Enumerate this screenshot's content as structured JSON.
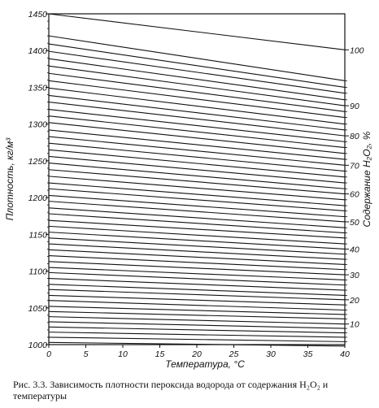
{
  "caption": "Рис. 3.3. Зависимость плотности пероксида водорода от содержания H₂O₂ и температуры",
  "chart_data": {
    "type": "line",
    "title": "",
    "xlabel": "Температура, °С",
    "ylabel": "Плотность, кг/м³",
    "y2label": "Содержание H₂O₂, %",
    "xlim": [
      0,
      40
    ],
    "ylim": [
      1000,
      1450
    ],
    "xticks": [
      "0",
      "5",
      "10",
      "15",
      "20",
      "25",
      "30",
      "35",
      "40"
    ],
    "yticks": [
      "1000",
      "1050",
      "1100",
      "1150",
      "1200",
      "1250",
      "1300",
      "1350",
      "1400",
      "1450"
    ],
    "y2ticks": [
      "10",
      "20",
      "30",
      "40",
      "50",
      "60",
      "70",
      "80",
      "90",
      "100"
    ],
    "grid": false,
    "series_description": "Isoconcentration lines: density vs temperature for H2O2 content from 0 to 100 % in 2 % steps",
    "content_percent": [
      0,
      2,
      4,
      6,
      8,
      10,
      12,
      14,
      16,
      18,
      20,
      22,
      24,
      26,
      28,
      30,
      32,
      34,
      36,
      38,
      40,
      42,
      44,
      46,
      48,
      50,
      52,
      54,
      56,
      58,
      60,
      62,
      64,
      66,
      68,
      70,
      72,
      74,
      76,
      78,
      80,
      82,
      84,
      86,
      88,
      90,
      92,
      94,
      96,
      98,
      100
    ],
    "density_at_0C": [
      1003,
      1010,
      1017,
      1024,
      1031,
      1038,
      1045,
      1052,
      1060,
      1067,
      1075,
      1082,
      1090,
      1098,
      1105,
      1113,
      1121,
      1129,
      1137,
      1145,
      1153,
      1161,
      1169,
      1178,
      1186,
      1195,
      1203,
      1212,
      1220,
      1229,
      1238,
      1247,
      1256,
      1265,
      1274,
      1283,
      1292,
      1302,
      1311,
      1320,
      1330,
      1339,
      1349,
      1359,
      1369,
      1379,
      1389,
      1399,
      1409,
      1420,
      1450
    ],
    "density_at_40C": [
      998,
      1004,
      1010,
      1016,
      1022,
      1028,
      1035,
      1041,
      1047,
      1054,
      1061,
      1067,
      1074,
      1081,
      1088,
      1095,
      1102,
      1109,
      1116,
      1123,
      1130,
      1137,
      1145,
      1152,
      1159,
      1167,
      1174,
      1182,
      1189,
      1197,
      1205,
      1212,
      1220,
      1228,
      1236,
      1244,
      1252,
      1260,
      1268,
      1276,
      1284,
      1292,
      1300,
      1309,
      1317,
      1325,
      1333,
      1342,
      1350,
      1359,
      1401
    ]
  }
}
